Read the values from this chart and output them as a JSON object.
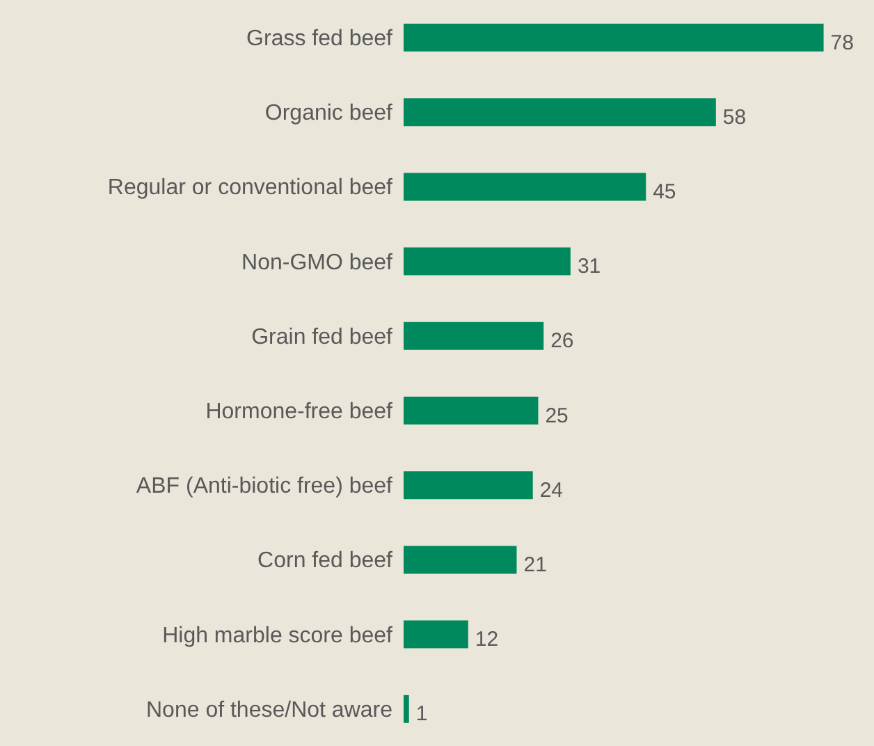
{
  "chart_data": {
    "type": "bar",
    "orientation": "horizontal",
    "categories": [
      "Grass fed beef",
      "Organic beef",
      "Regular or conventional beef",
      "Non-GMO beef",
      "Grain fed beef",
      "Hormone-free beef",
      "ABF (Anti-biotic free) beef",
      "Corn fed beef",
      "High marble score beef",
      "None of these/Not aware"
    ],
    "values": [
      78,
      58,
      45,
      31,
      26,
      25,
      24,
      21,
      12,
      1
    ],
    "color": "#00895c",
    "data_labels": true
  }
}
